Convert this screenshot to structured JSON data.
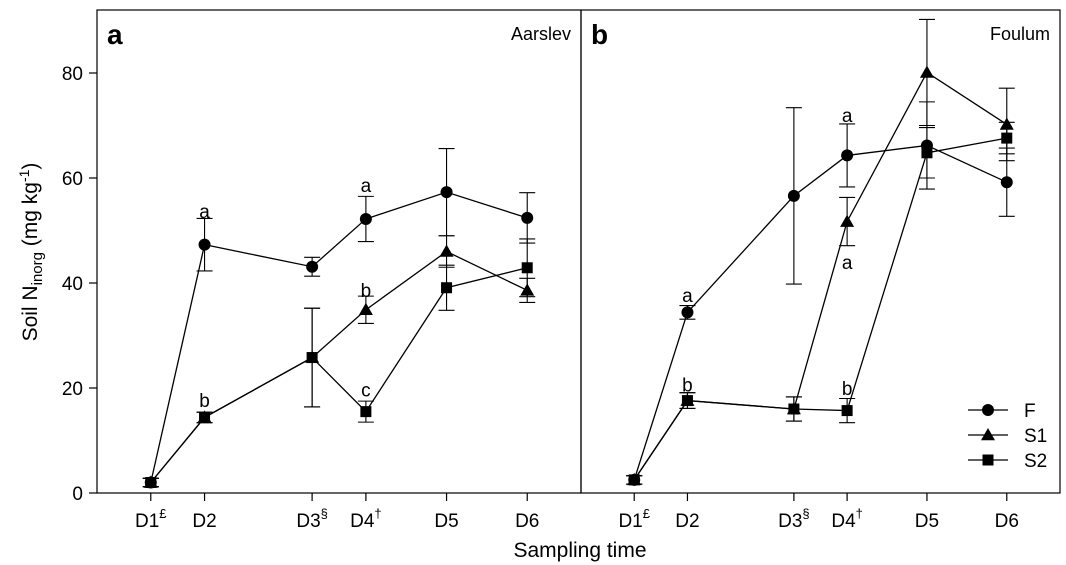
{
  "chart_data": {
    "type": "line",
    "x_tick_labels": [
      {
        "base": "D1",
        "sup": "£"
      },
      {
        "base": "D2",
        "sup": ""
      },
      {
        "base": "D3",
        "sup": "§"
      },
      {
        "base": "D4",
        "sup": "†"
      },
      {
        "base": "D5",
        "sup": ""
      },
      {
        "base": "D6",
        "sup": ""
      }
    ],
    "x_positions": [
      1,
      2,
      4,
      5,
      6.5,
      8
    ],
    "xlabel": "Sampling time",
    "ylabel": {
      "prefix": "Soil N",
      "sub": "inorg",
      "middle": " (mg kg",
      "sup": "-1",
      "suffix": ")"
    },
    "ylim": [
      0,
      92
    ],
    "yticks": [
      0,
      20,
      40,
      60,
      80
    ],
    "legend": {
      "position": "bottom-right",
      "entries": [
        {
          "series": "F",
          "marker": "circle"
        },
        {
          "series": "S1",
          "marker": "triangle"
        },
        {
          "series": "S2",
          "marker": "square"
        }
      ]
    },
    "panels": [
      {
        "letter": "a",
        "site": "Aarslev",
        "series": [
          {
            "name": "F",
            "marker": "circle",
            "values": [
              2,
              47.3,
              43.1,
              52.2,
              57.3,
              52.4
            ],
            "errors": [
              0.8,
              5,
              1.8,
              4.3,
              8.3,
              4.8
            ]
          },
          {
            "name": "S1",
            "marker": "triangle",
            "values": [
              2,
              14.4,
              25.8,
              34.9,
              46,
              38.6
            ],
            "errors": [
              0.8,
              1,
              9.4,
              2.6,
              3,
              2.3
            ]
          },
          {
            "name": "S2",
            "marker": "square",
            "values": [
              2,
              14.4,
              25.8,
              15.5,
              39.1,
              42.9
            ],
            "errors": [
              0.8,
              1,
              9.4,
              2,
              4.3,
              5.5
            ]
          }
        ],
        "annotations": [
          {
            "text": "a",
            "x": 2,
            "y": 53.5
          },
          {
            "text": "b",
            "x": 2,
            "y": 17.5
          },
          {
            "text": "a",
            "x": 5,
            "y": 58.5
          },
          {
            "text": "b",
            "x": 5,
            "y": 38.5
          },
          {
            "text": "c",
            "x": 5,
            "y": 19.5
          }
        ]
      },
      {
        "letter": "b",
        "site": "Foulum",
        "series": [
          {
            "name": "F",
            "marker": "circle",
            "values": [
              2.5,
              34.4,
              56.6,
              64.3,
              66.2,
              59.2
            ],
            "errors": [
              0.8,
              1.3,
              16.8,
              6,
              8.3,
              6.5
            ]
          },
          {
            "name": "S1",
            "marker": "triangle",
            "values": [
              2.5,
              17.6,
              16,
              51.7,
              80.1,
              70.2
            ],
            "errors": [
              0.8,
              1.5,
              2.3,
              4.6,
              10.1,
              6.9
            ]
          },
          {
            "name": "S2",
            "marker": "square",
            "values": [
              2.5,
              17.6,
              16,
              15.7,
              64.8,
              67.6
            ],
            "errors": [
              0.8,
              1.5,
              2.3,
              2.3,
              4.8,
              3
            ]
          }
        ],
        "annotations": [
          {
            "text": "a",
            "x": 2,
            "y": 37.5
          },
          {
            "text": "b",
            "x": 2,
            "y": 20.5
          },
          {
            "text": "a",
            "x": 5,
            "y": 71.8
          },
          {
            "text": "a",
            "x": 5,
            "y": 43.8
          },
          {
            "text": "b",
            "x": 5,
            "y": 19.8
          }
        ]
      }
    ]
  }
}
